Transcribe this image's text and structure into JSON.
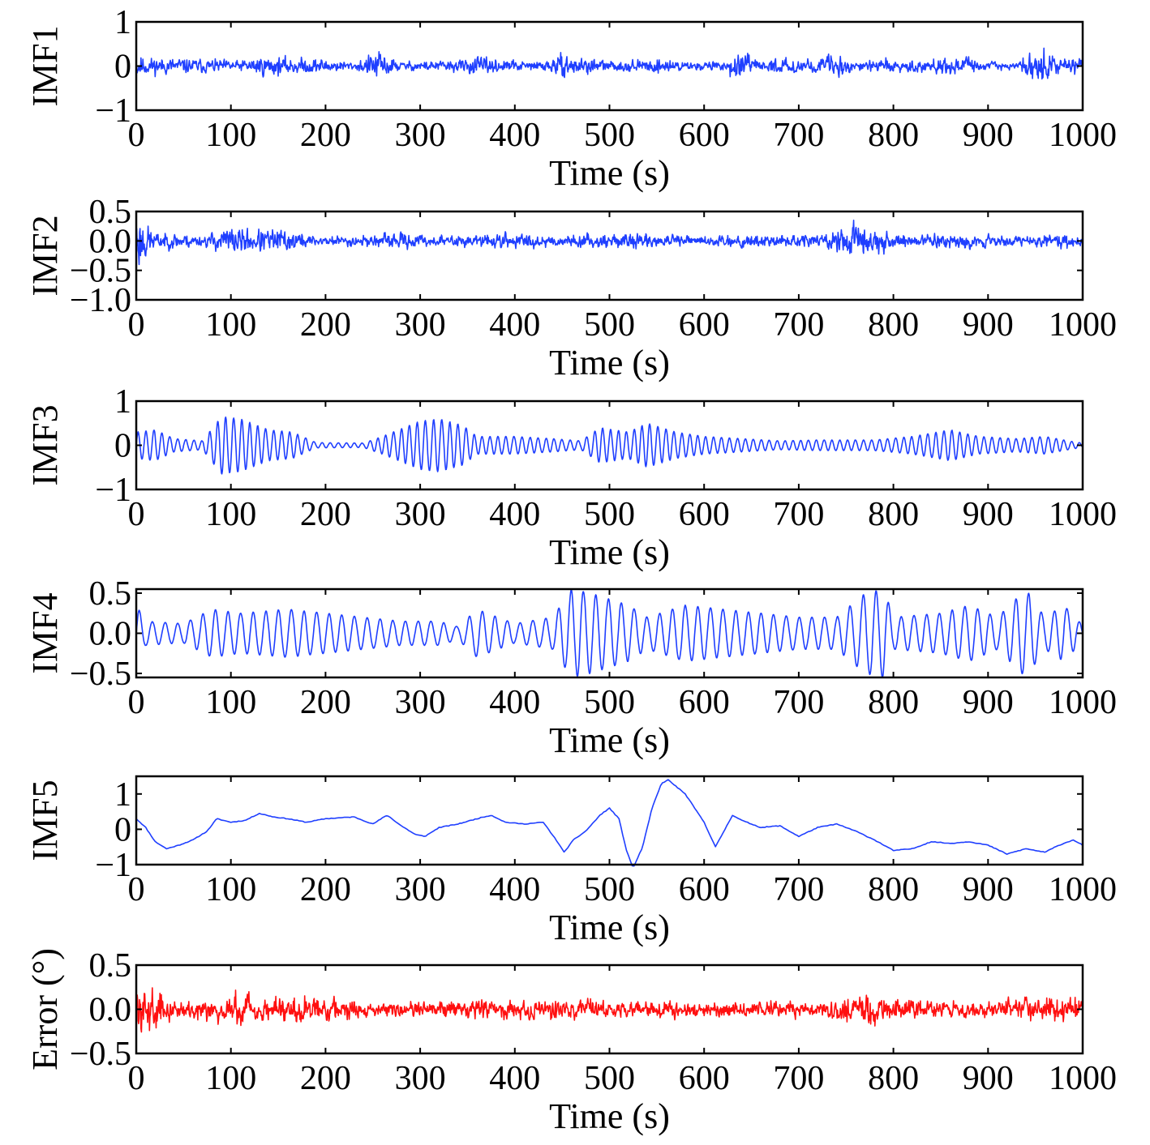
{
  "figure": {
    "colors": {
      "imf": "#1f3fff",
      "error": "#ff1010",
      "axis": "#000000"
    }
  },
  "chart_data": [
    {
      "type": "line",
      "id": "imf1",
      "ylabel": "IMF1",
      "xlabel": "Time (s)",
      "xlim": [
        0,
        1000
      ],
      "ylim": [
        -1,
        1
      ],
      "yticks": [
        1,
        0,
        -1
      ],
      "ytick_labels": [
        "1",
        "0",
        "−1"
      ],
      "xticks": [
        0,
        100,
        200,
        300,
        400,
        500,
        600,
        700,
        800,
        900,
        1000
      ],
      "xtick_labels": [
        "0",
        "100",
        "200",
        "300",
        "400",
        "500",
        "600",
        "700",
        "800",
        "900",
        "1000"
      ],
      "color": "#1f3fff",
      "signal": {
        "kind": "noise",
        "seed": 11,
        "envelope": [
          [
            0,
            0.45
          ],
          [
            10,
            0.3
          ],
          [
            60,
            0.25
          ],
          [
            110,
            0.18
          ],
          [
            130,
            0.35
          ],
          [
            160,
            0.28
          ],
          [
            200,
            0.25
          ],
          [
            230,
            0.12
          ],
          [
            255,
            0.5
          ],
          [
            280,
            0.15
          ],
          [
            340,
            0.2
          ],
          [
            360,
            0.3
          ],
          [
            385,
            0.2
          ],
          [
            400,
            0.2
          ],
          [
            415,
            0.12
          ],
          [
            450,
            0.35
          ],
          [
            480,
            0.28
          ],
          [
            500,
            0.15
          ],
          [
            560,
            0.25
          ],
          [
            585,
            0.12
          ],
          [
            620,
            0.18
          ],
          [
            635,
            0.45
          ],
          [
            660,
            0.15
          ],
          [
            680,
            0.25
          ],
          [
            720,
            0.22
          ],
          [
            735,
            0.45
          ],
          [
            760,
            0.15
          ],
          [
            790,
            0.25
          ],
          [
            830,
            0.18
          ],
          [
            850,
            0.28
          ],
          [
            875,
            0.3
          ],
          [
            900,
            0.12
          ],
          [
            930,
            0.12
          ],
          [
            955,
            0.65
          ],
          [
            975,
            0.18
          ],
          [
            995,
            0.35
          ],
          [
            1000,
            0.35
          ]
        ]
      }
    },
    {
      "type": "line",
      "id": "imf2",
      "ylabel": "IMF2",
      "xlabel": "Time (s)",
      "xlim": [
        0,
        1000
      ],
      "ylim": [
        -1.0,
        0.5
      ],
      "yticks": [
        0.5,
        0.0,
        -0.5,
        -1.0
      ],
      "ytick_labels": [
        "0.5",
        "0.0",
        "−0.5",
        "−1.0"
      ],
      "xticks": [
        0,
        100,
        200,
        300,
        400,
        500,
        600,
        700,
        800,
        900,
        1000
      ],
      "xtick_labels": [
        "0",
        "100",
        "200",
        "300",
        "400",
        "500",
        "600",
        "700",
        "800",
        "900",
        "1000"
      ],
      "color": "#1f3fff",
      "signal": {
        "kind": "noise",
        "seed": 23,
        "envelope": [
          [
            0,
            0.85
          ],
          [
            8,
            0.55
          ],
          [
            20,
            0.2
          ],
          [
            50,
            0.2
          ],
          [
            70,
            0.12
          ],
          [
            95,
            0.35
          ],
          [
            130,
            0.3
          ],
          [
            160,
            0.3
          ],
          [
            190,
            0.12
          ],
          [
            250,
            0.15
          ],
          [
            280,
            0.2
          ],
          [
            330,
            0.12
          ],
          [
            390,
            0.2
          ],
          [
            450,
            0.15
          ],
          [
            520,
            0.18
          ],
          [
            600,
            0.12
          ],
          [
            640,
            0.18
          ],
          [
            700,
            0.15
          ],
          [
            730,
            0.2
          ],
          [
            760,
            0.5
          ],
          [
            790,
            0.3
          ],
          [
            820,
            0.15
          ],
          [
            860,
            0.2
          ],
          [
            900,
            0.15
          ],
          [
            940,
            0.12
          ],
          [
            980,
            0.2
          ],
          [
            1000,
            0.15
          ]
        ]
      }
    },
    {
      "type": "line",
      "id": "imf3",
      "ylabel": "IMF3",
      "xlabel": "Time (s)",
      "xlim": [
        0,
        1000
      ],
      "ylim": [
        -1,
        1
      ],
      "yticks": [
        1,
        0,
        -1
      ],
      "ytick_labels": [
        "1",
        "0",
        "−1"
      ],
      "xticks": [
        0,
        100,
        200,
        300,
        400,
        500,
        600,
        700,
        800,
        900,
        1000
      ],
      "xtick_labels": [
        "0",
        "100",
        "200",
        "300",
        "400",
        "500",
        "600",
        "700",
        "800",
        "900",
        "1000"
      ],
      "color": "#1f3fff",
      "signal": {
        "kind": "oscillation",
        "period": 8.5,
        "seed": 37,
        "envelope": [
          [
            0,
            0.3
          ],
          [
            20,
            0.35
          ],
          [
            40,
            0.15
          ],
          [
            70,
            0.1
          ],
          [
            90,
            0.65
          ],
          [
            110,
            0.6
          ],
          [
            140,
            0.35
          ],
          [
            165,
            0.3
          ],
          [
            190,
            0.06
          ],
          [
            240,
            0.05
          ],
          [
            260,
            0.2
          ],
          [
            300,
            0.55
          ],
          [
            320,
            0.6
          ],
          [
            345,
            0.45
          ],
          [
            360,
            0.2
          ],
          [
            400,
            0.2
          ],
          [
            440,
            0.15
          ],
          [
            470,
            0.1
          ],
          [
            490,
            0.4
          ],
          [
            520,
            0.3
          ],
          [
            540,
            0.5
          ],
          [
            570,
            0.3
          ],
          [
            600,
            0.2
          ],
          [
            640,
            0.15
          ],
          [
            680,
            0.1
          ],
          [
            720,
            0.12
          ],
          [
            780,
            0.12
          ],
          [
            820,
            0.2
          ],
          [
            860,
            0.35
          ],
          [
            890,
            0.2
          ],
          [
            930,
            0.15
          ],
          [
            960,
            0.2
          ],
          [
            990,
            0.08
          ],
          [
            1000,
            0.05
          ]
        ]
      }
    },
    {
      "type": "line",
      "id": "imf4",
      "ylabel": "IMF4",
      "xlabel": "Time (s)",
      "xlim": [
        0,
        1000
      ],
      "ylim": [
        -0.55,
        0.55
      ],
      "yticks": [
        0.5,
        0.0,
        -0.5
      ],
      "ytick_labels": [
        "0.5",
        "0.0",
        "−0.5"
      ],
      "xticks": [
        0,
        100,
        200,
        300,
        400,
        500,
        600,
        700,
        800,
        900,
        1000
      ],
      "xtick_labels": [
        "0",
        "100",
        "200",
        "300",
        "400",
        "500",
        "600",
        "700",
        "800",
        "900",
        "1000"
      ],
      "color": "#1f3fff",
      "signal": {
        "kind": "oscillation",
        "period": 13.5,
        "seed": 41,
        "envelope": [
          [
            0,
            0.35
          ],
          [
            10,
            0.15
          ],
          [
            50,
            0.12
          ],
          [
            80,
            0.3
          ],
          [
            110,
            0.25
          ],
          [
            160,
            0.3
          ],
          [
            200,
            0.25
          ],
          [
            240,
            0.2
          ],
          [
            280,
            0.15
          ],
          [
            320,
            0.15
          ],
          [
            340,
            0.08
          ],
          [
            360,
            0.3
          ],
          [
            400,
            0.12
          ],
          [
            440,
            0.2
          ],
          [
            460,
            0.55
          ],
          [
            480,
            0.5
          ],
          [
            520,
            0.35
          ],
          [
            540,
            0.2
          ],
          [
            580,
            0.35
          ],
          [
            620,
            0.3
          ],
          [
            660,
            0.25
          ],
          [
            700,
            0.2
          ],
          [
            740,
            0.2
          ],
          [
            770,
            0.5
          ],
          [
            790,
            0.55
          ],
          [
            800,
            0.2
          ],
          [
            850,
            0.25
          ],
          [
            880,
            0.35
          ],
          [
            910,
            0.2
          ],
          [
            940,
            0.55
          ],
          [
            960,
            0.2
          ],
          [
            980,
            0.35
          ],
          [
            1000,
            0.1
          ]
        ]
      }
    },
    {
      "type": "line",
      "id": "imf5",
      "ylabel": "IMF5",
      "xlabel": "Time (s)",
      "xlim": [
        0,
        1000
      ],
      "ylim": [
        -1,
        1.5
      ],
      "yticks": [
        1,
        0,
        -1
      ],
      "ytick_labels": [
        "1",
        "0",
        "−1"
      ],
      "xticks": [
        0,
        100,
        200,
        300,
        400,
        500,
        600,
        700,
        800,
        900,
        1000
      ],
      "xtick_labels": [
        "0",
        "100",
        "200",
        "300",
        "400",
        "500",
        "600",
        "700",
        "800",
        "900",
        "1000"
      ],
      "color": "#1f3fff",
      "signal": {
        "kind": "points",
        "points": [
          [
            0,
            0.3
          ],
          [
            10,
            0.05
          ],
          [
            20,
            -0.35
          ],
          [
            32,
            -0.55
          ],
          [
            45,
            -0.45
          ],
          [
            60,
            -0.3
          ],
          [
            75,
            -0.05
          ],
          [
            85,
            0.3
          ],
          [
            100,
            0.2
          ],
          [
            115,
            0.25
          ],
          [
            130,
            0.45
          ],
          [
            145,
            0.35
          ],
          [
            160,
            0.3
          ],
          [
            180,
            0.2
          ],
          [
            200,
            0.3
          ],
          [
            230,
            0.35
          ],
          [
            250,
            0.15
          ],
          [
            265,
            0.4
          ],
          [
            280,
            0.1
          ],
          [
            295,
            -0.15
          ],
          [
            305,
            -0.2
          ],
          [
            320,
            0.05
          ],
          [
            340,
            0.15
          ],
          [
            360,
            0.3
          ],
          [
            375,
            0.4
          ],
          [
            390,
            0.2
          ],
          [
            410,
            0.15
          ],
          [
            430,
            0.2
          ],
          [
            445,
            -0.35
          ],
          [
            452,
            -0.65
          ],
          [
            462,
            -0.3
          ],
          [
            475,
            -0.05
          ],
          [
            490,
            0.4
          ],
          [
            500,
            0.6
          ],
          [
            510,
            0.3
          ],
          [
            518,
            -0.6
          ],
          [
            525,
            -1.1
          ],
          [
            535,
            -0.5
          ],
          [
            545,
            0.6
          ],
          [
            555,
            1.3
          ],
          [
            562,
            1.4
          ],
          [
            580,
            1.0
          ],
          [
            600,
            0.2
          ],
          [
            612,
            -0.5
          ],
          [
            620,
            -0.1
          ],
          [
            630,
            0.4
          ],
          [
            640,
            0.25
          ],
          [
            660,
            0.05
          ],
          [
            680,
            0.1
          ],
          [
            700,
            -0.2
          ],
          [
            720,
            0.05
          ],
          [
            740,
            0.15
          ],
          [
            760,
            -0.05
          ],
          [
            780,
            -0.3
          ],
          [
            800,
            -0.6
          ],
          [
            820,
            -0.55
          ],
          [
            840,
            -0.35
          ],
          [
            860,
            -0.4
          ],
          [
            880,
            -0.35
          ],
          [
            900,
            -0.45
          ],
          [
            920,
            -0.7
          ],
          [
            940,
            -0.55
          ],
          [
            960,
            -0.65
          ],
          [
            975,
            -0.45
          ],
          [
            990,
            -0.3
          ],
          [
            1000,
            -0.45
          ]
        ]
      }
    },
    {
      "type": "line",
      "id": "error",
      "ylabel": "Error (°)",
      "xlabel": "Time (s)",
      "xlim": [
        0,
        1000
      ],
      "ylim": [
        -0.5,
        0.5
      ],
      "yticks": [
        0.5,
        0.0,
        -0.5
      ],
      "ytick_labels": [
        "0.5",
        "0.0",
        "−0.5"
      ],
      "xticks": [
        0,
        100,
        200,
        300,
        400,
        500,
        600,
        700,
        800,
        900,
        1000
      ],
      "xtick_labels": [
        "0",
        "100",
        "200",
        "300",
        "400",
        "500",
        "600",
        "700",
        "800",
        "900",
        "1000"
      ],
      "color": "#ff1010",
      "signal": {
        "kind": "noise",
        "seed": 59,
        "envelope": [
          [
            0,
            0.4
          ],
          [
            15,
            0.35
          ],
          [
            40,
            0.15
          ],
          [
            100,
            0.2
          ],
          [
            105,
            0.35
          ],
          [
            130,
            0.18
          ],
          [
            170,
            0.25
          ],
          [
            250,
            0.12
          ],
          [
            350,
            0.15
          ],
          [
            420,
            0.18
          ],
          [
            450,
            0.2
          ],
          [
            500,
            0.12
          ],
          [
            560,
            0.15
          ],
          [
            600,
            0.12
          ],
          [
            650,
            0.12
          ],
          [
            680,
            0.15
          ],
          [
            720,
            0.12
          ],
          [
            760,
            0.3
          ],
          [
            800,
            0.2
          ],
          [
            850,
            0.15
          ],
          [
            900,
            0.12
          ],
          [
            950,
            0.2
          ],
          [
            990,
            0.22
          ],
          [
            1000,
            0.2
          ]
        ]
      }
    }
  ]
}
